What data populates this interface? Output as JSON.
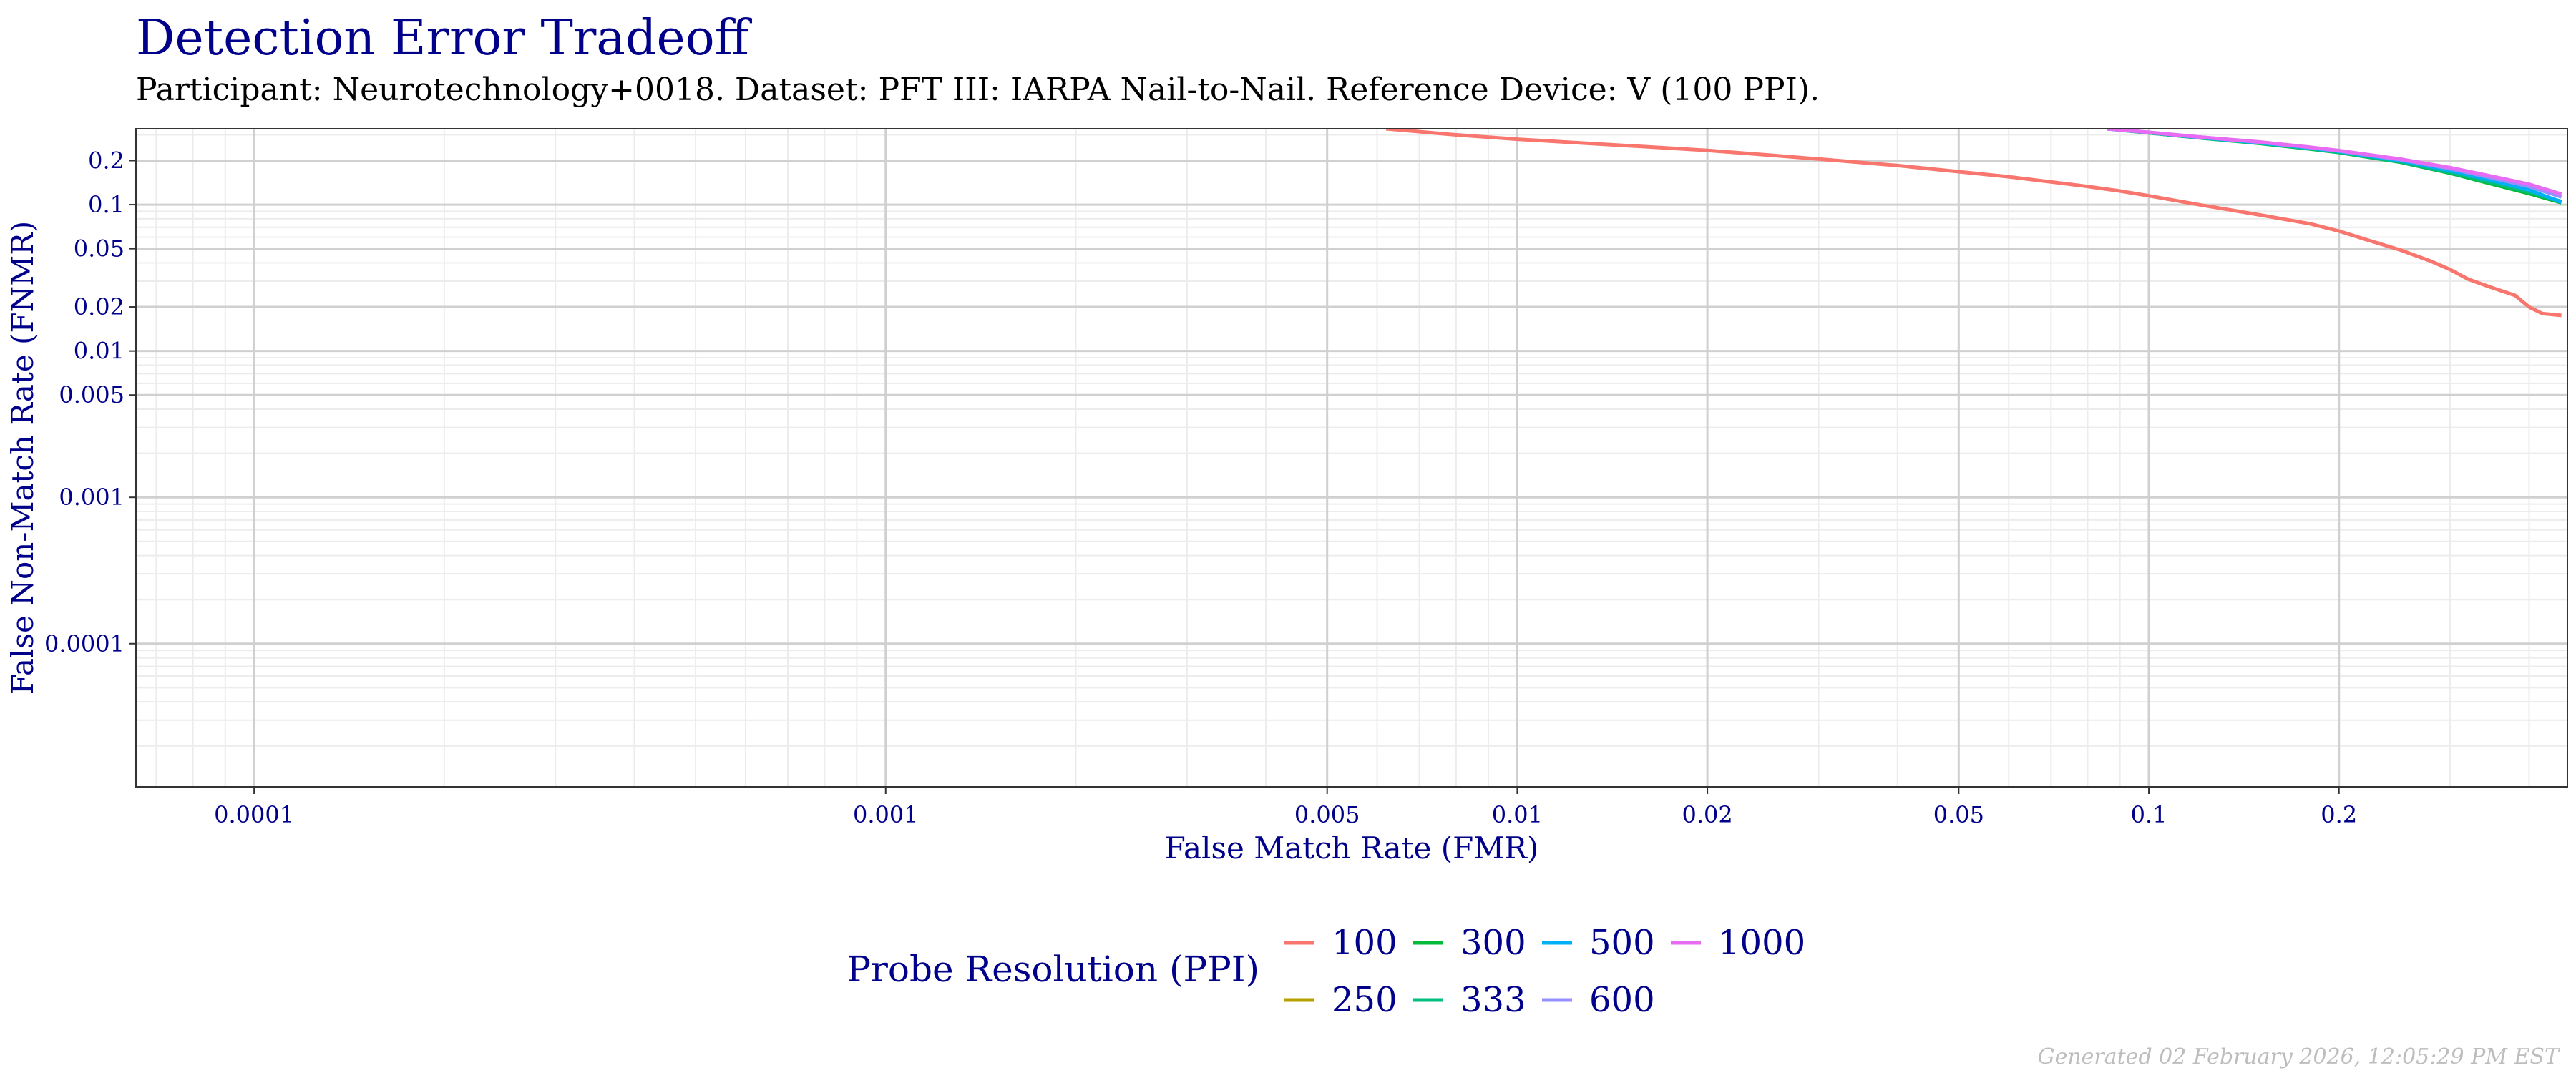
{
  "title": "Detection Error Tradeoff",
  "subtitle": "Participant: Neurotechnology+0018. Dataset: PFT III: IARPA Nail-to-Nail. Reference Device: V (100 PPI).",
  "footer": "Generated 02 February 2026, 12:05:29 PM EST",
  "colors": {
    "text": "#00008b",
    "panel_border": "#333333",
    "grid_major": "#d0d0d0",
    "grid_minor": "#ececec"
  },
  "chart_data": {
    "type": "line",
    "xlabel": "False Match Rate (FMR)",
    "ylabel": "False Non-Match Rate (FNMR)",
    "x_scale": "log",
    "y_scale": "log",
    "xlim": [
      6.5e-05,
      0.46
    ],
    "ylim": [
      1.05e-05,
      0.33
    ],
    "x_ticks": [
      {
        "value": 0.0001,
        "label": "0.0001"
      },
      {
        "value": 0.001,
        "label": "0.001"
      },
      {
        "value": 0.005,
        "label": "0.005"
      },
      {
        "value": 0.01,
        "label": "0.01"
      },
      {
        "value": 0.02,
        "label": "0.02"
      },
      {
        "value": 0.05,
        "label": "0.05"
      },
      {
        "value": 0.1,
        "label": "0.1"
      },
      {
        "value": 0.2,
        "label": "0.2"
      }
    ],
    "y_ticks": [
      {
        "value": 0.2,
        "label": "0.2"
      },
      {
        "value": 0.1,
        "label": "0.1"
      },
      {
        "value": 0.05,
        "label": "0.05"
      },
      {
        "value": 0.02,
        "label": "0.02"
      },
      {
        "value": 0.01,
        "label": "0.01"
      },
      {
        "value": 0.005,
        "label": "0.005"
      },
      {
        "value": 0.001,
        "label": "0.001"
      },
      {
        "value": 0.0001,
        "label": "0.0001"
      }
    ],
    "grid": true,
    "legend": {
      "title": "Probe Resolution (PPI)",
      "placement": "bottom",
      "rows": 2
    },
    "series": [
      {
        "name": "100",
        "color": "#f8766d",
        "x": [
          0.0062,
          0.008,
          0.01,
          0.013,
          0.017,
          0.02,
          0.025,
          0.03,
          0.04,
          0.05,
          0.06,
          0.07,
          0.08,
          0.09,
          0.1,
          0.12,
          0.15,
          0.18,
          0.2,
          0.22,
          0.25,
          0.28,
          0.3,
          0.32,
          0.35,
          0.38,
          0.4,
          0.42,
          0.45
        ],
        "y": [
          0.33,
          0.3,
          0.28,
          0.262,
          0.245,
          0.235,
          0.218,
          0.205,
          0.185,
          0.168,
          0.155,
          0.143,
          0.133,
          0.124,
          0.115,
          0.1,
          0.085,
          0.074,
          0.066,
          0.058,
          0.049,
          0.041,
          0.036,
          0.031,
          0.027,
          0.024,
          0.02,
          0.018,
          0.0175
        ]
      },
      {
        "name": "250",
        "color": "#b79f00",
        "x": [
          0.086,
          0.1,
          0.12,
          0.15,
          0.18,
          0.2,
          0.25,
          0.3,
          0.35,
          0.4,
          0.45
        ],
        "y": [
          0.33,
          0.31,
          0.287,
          0.263,
          0.241,
          0.228,
          0.196,
          0.166,
          0.14,
          0.121,
          0.104
        ]
      },
      {
        "name": "300",
        "color": "#00ba38",
        "x": [
          0.086,
          0.1,
          0.12,
          0.15,
          0.18,
          0.2,
          0.25,
          0.3,
          0.35,
          0.4,
          0.45
        ],
        "y": [
          0.33,
          0.31,
          0.286,
          0.262,
          0.24,
          0.227,
          0.195,
          0.164,
          0.138,
          0.119,
          0.103
        ]
      },
      {
        "name": "333",
        "color": "#00bf7d",
        "x": [
          0.086,
          0.1,
          0.12,
          0.15,
          0.18,
          0.2,
          0.25,
          0.3,
          0.35,
          0.4,
          0.45
        ],
        "y": [
          0.33,
          0.31,
          0.287,
          0.263,
          0.241,
          0.228,
          0.196,
          0.166,
          0.141,
          0.122,
          0.105
        ]
      },
      {
        "name": "500",
        "color": "#00b0f6",
        "x": [
          0.086,
          0.1,
          0.12,
          0.15,
          0.18,
          0.2,
          0.25,
          0.3,
          0.35,
          0.4,
          0.45
        ],
        "y": [
          0.33,
          0.311,
          0.288,
          0.265,
          0.244,
          0.231,
          0.2,
          0.171,
          0.146,
          0.126,
          0.104
        ]
      },
      {
        "name": "600",
        "color": "#9590ff",
        "x": [
          0.086,
          0.1,
          0.12,
          0.15,
          0.18,
          0.2,
          0.25,
          0.3,
          0.35,
          0.4,
          0.45
        ],
        "y": [
          0.33,
          0.312,
          0.29,
          0.267,
          0.246,
          0.233,
          0.203,
          0.176,
          0.152,
          0.133,
          0.113
        ]
      },
      {
        "name": "1000",
        "color": "#e76bf3",
        "x": [
          0.086,
          0.1,
          0.12,
          0.15,
          0.18,
          0.2,
          0.25,
          0.3,
          0.35,
          0.4,
          0.45
        ],
        "y": [
          0.33,
          0.312,
          0.29,
          0.268,
          0.247,
          0.234,
          0.205,
          0.179,
          0.156,
          0.138,
          0.118
        ]
      }
    ]
  }
}
